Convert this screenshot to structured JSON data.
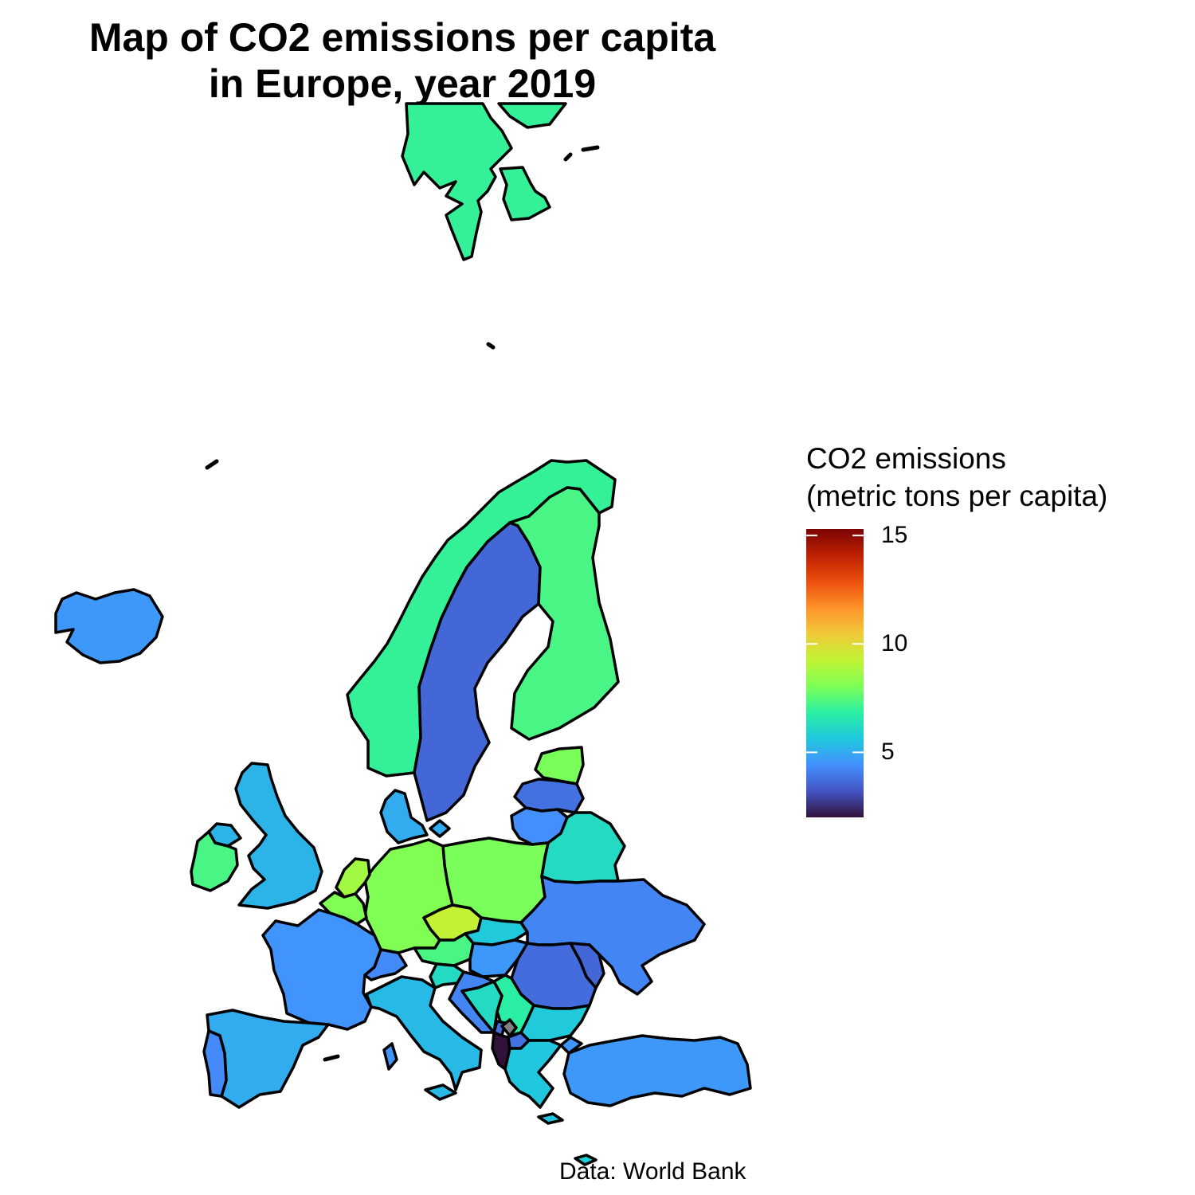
{
  "title": {
    "line1": "Map of CO2 emissions per capita",
    "line2": "in Europe, year 2019"
  },
  "legend": {
    "title_line1": "CO2 emissions",
    "title_line2": "(metric tons per capita)",
    "min": 2,
    "max": 15.3,
    "ticks": [
      {
        "value": 5,
        "label": "5"
      },
      {
        "value": 10,
        "label": "10"
      },
      {
        "value": 15,
        "label": "15"
      }
    ],
    "colors": [
      "#30123b",
      "#4454c4",
      "#4490fe",
      "#1fc8de",
      "#29efa2",
      "#7dff56",
      "#c1f334",
      "#f1ca3a",
      "#fe922a",
      "#ea4f0d",
      "#be2102",
      "#7a0403"
    ]
  },
  "caption": "Data: World Bank",
  "map_data": {
    "type": "choropleth",
    "region": "Europe",
    "year": 2019,
    "countries": [
      {
        "name": "Svalbard",
        "value": 7.0
      },
      {
        "name": "Norway",
        "value": 7.0
      },
      {
        "name": "Sweden",
        "value": 3.6
      },
      {
        "name": "Finland",
        "value": 7.3
      },
      {
        "name": "Iceland",
        "value": 4.6
      },
      {
        "name": "United Kingdom",
        "value": 5.2
      },
      {
        "name": "Ireland",
        "value": 7.3
      },
      {
        "name": "Denmark",
        "value": 5.0
      },
      {
        "name": "Estonia",
        "value": 8.0
      },
      {
        "name": "Latvia",
        "value": 3.8
      },
      {
        "name": "Lithuania",
        "value": 4.4
      },
      {
        "name": "Belarus",
        "value": 6.2
      },
      {
        "name": "Poland",
        "value": 8.0
      },
      {
        "name": "Germany",
        "value": 8.1
      },
      {
        "name": "Netherlands",
        "value": 8.7
      },
      {
        "name": "Belgium",
        "value": 8.1
      },
      {
        "name": "France",
        "value": 4.5
      },
      {
        "name": "Czechia",
        "value": 9.3
      },
      {
        "name": "Austria",
        "value": 7.3
      },
      {
        "name": "Switzerland",
        "value": 4.3
      },
      {
        "name": "Slovakia",
        "value": 5.7
      },
      {
        "name": "Hungary",
        "value": 4.6
      },
      {
        "name": "Ukraine",
        "value": 4.2
      },
      {
        "name": "Moldova",
        "value": 3.6
      },
      {
        "name": "Romania",
        "value": 3.7
      },
      {
        "name": "Italy",
        "value": 5.3
      },
      {
        "name": "Slovenia",
        "value": 6.2
      },
      {
        "name": "Croatia",
        "value": 4.2
      },
      {
        "name": "Bosnia and Herzegovina",
        "value": 6.2
      },
      {
        "name": "Serbia",
        "value": 6.8
      },
      {
        "name": "Montenegro",
        "value": 3.8
      },
      {
        "name": "Albania",
        "value": 1.7
      },
      {
        "name": "North Macedonia",
        "value": 3.8
      },
      {
        "name": "Bulgaria",
        "value": 5.7
      },
      {
        "name": "Greece",
        "value": 5.6
      },
      {
        "name": "Turkey",
        "value": 4.6
      },
      {
        "name": "Spain",
        "value": 5.0
      },
      {
        "name": "Portugal",
        "value": 4.3
      },
      {
        "name": "Cyprus",
        "value": 5.8
      },
      {
        "name": "Kosovo",
        "value": null
      }
    ],
    "missing_color": "#808080"
  }
}
